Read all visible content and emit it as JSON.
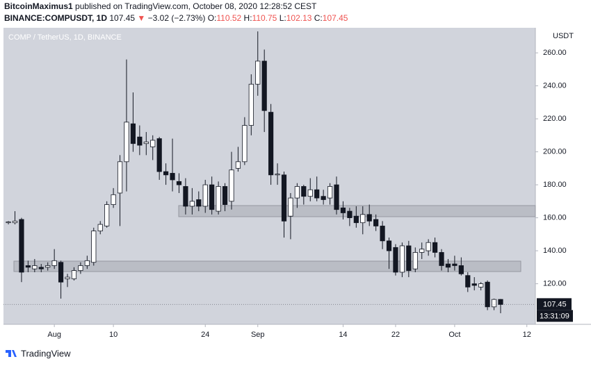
{
  "header": {
    "author": "BitcoinMaximus1",
    "published": "published on TradingView.com, October 08, 2020 12:28:52 CEST",
    "symbol": "BINANCE:COMPUSDT, 1D",
    "price": "107.45",
    "arrow": "▼",
    "change": "−3.02 (−2.73%)",
    "ohlc": [
      {
        "label": "O:",
        "value": "110.52"
      },
      {
        "label": "H:",
        "value": "110.75"
      },
      {
        "label": "L:",
        "value": "102.13"
      },
      {
        "label": "C:",
        "value": "107.45"
      }
    ]
  },
  "footer": {
    "brand": "TradingView"
  },
  "chart_data": {
    "type": "candlestick",
    "title": "COMP / TetherUS, 1D, BINANCE",
    "y_axis_label": "USDT",
    "up_color": "#ffffff",
    "down_color": "#131722",
    "open": [
      157,
      157,
      159,
      131,
      129,
      130,
      130,
      131,
      133,
      123,
      123,
      128,
      131,
      133,
      152,
      155,
      168,
      175,
      194,
      217,
      209,
      205,
      203,
      208,
      188,
      187,
      182,
      179,
      167,
      171,
      167,
      180,
      164,
      179,
      170,
      190,
      194,
      216,
      241,
      255,
      224,
      186,
      186,
      161,
      172,
      179,
      173,
      177,
      173,
      172,
      180,
      166,
      164,
      161,
      157,
      162,
      159,
      155,
      146,
      142,
      127,
      143,
      129,
      139,
      140,
      145,
      139,
      132,
      132,
      131,
      125,
      120,
      118,
      121,
      106,
      110.52
    ],
    "high": [
      158,
      164,
      160,
      134,
      135,
      132,
      133,
      141,
      134,
      126,
      130,
      133,
      137,
      154,
      158,
      170,
      178,
      198,
      256,
      236,
      216,
      212,
      210,
      209,
      193,
      208,
      187,
      184,
      178,
      176,
      183,
      185,
      182,
      181,
      200,
      203,
      221,
      247,
      273,
      262,
      229,
      193,
      188,
      175,
      181,
      180,
      184,
      185,
      177,
      181,
      185,
      170,
      166,
      167,
      167,
      168,
      162,
      158,
      148,
      144,
      145,
      146,
      142,
      145,
      147,
      148,
      141,
      135,
      137,
      136,
      127,
      124,
      121,
      122,
      111,
      110.75
    ],
    "low": [
      156,
      156,
      121,
      127,
      127,
      127,
      128,
      129,
      111,
      118,
      122,
      126,
      129,
      131,
      150,
      154,
      166,
      155,
      176,
      200,
      198,
      198,
      195,
      183,
      180,
      176,
      175,
      162,
      162,
      164,
      163,
      162,
      162,
      164,
      165,
      188,
      192,
      210,
      234,
      212,
      180,
      180,
      148,
      147,
      166,
      168,
      170,
      170,
      168,
      168,
      162,
      159,
      155,
      154,
      150,
      155,
      152,
      141,
      129,
      125,
      124,
      124,
      127,
      135,
      137,
      136,
      128,
      127,
      128,
      125,
      115,
      116,
      116,
      104,
      104,
      102.13
    ],
    "close": [
      157.5,
      158,
      127,
      130,
      131,
      129,
      131,
      134,
      121,
      124,
      128,
      131,
      134,
      152,
      156,
      168,
      174,
      194,
      218,
      205,
      204,
      206,
      207,
      188,
      186,
      183,
      180,
      167,
      170,
      167,
      180,
      165,
      179,
      168,
      189,
      194,
      216,
      241,
      255,
      225,
      186,
      186.5,
      158,
      172,
      179,
      173,
      177,
      172,
      171,
      179,
      165,
      163,
      160,
      157,
      162,
      158,
      155,
      146,
      140,
      127,
      143,
      128,
      139,
      141,
      145,
      139,
      131,
      130,
      131,
      126,
      118,
      119,
      120,
      106,
      110.5,
      107.45
    ],
    "xlim": [
      -0.75,
      80.3
    ],
    "ylim": [
      95.4,
      275.2
    ],
    "xticks": [
      {
        "value": 7,
        "label": "Aug"
      },
      {
        "value": 16,
        "label": "10"
      },
      {
        "value": 30,
        "label": "24"
      },
      {
        "value": 38,
        "label": "Sep"
      },
      {
        "value": 51,
        "label": "14"
      },
      {
        "value": 59,
        "label": "22"
      },
      {
        "value": 68,
        "label": "Oct"
      },
      {
        "value": 79,
        "label": "12"
      }
    ],
    "yticks": [
      {
        "value": 120,
        "label": "120.00"
      },
      {
        "value": 140,
        "label": "140.00"
      },
      {
        "value": 160,
        "label": "160.00"
      },
      {
        "value": 180,
        "label": "180.00"
      },
      {
        "value": 200,
        "label": "200.00"
      },
      {
        "value": 220,
        "label": "220.00"
      },
      {
        "value": 240,
        "label": "240.00"
      },
      {
        "value": 260,
        "label": "260.00"
      }
    ],
    "last_price": 107.45,
    "countdown": "13:31:09"
  }
}
